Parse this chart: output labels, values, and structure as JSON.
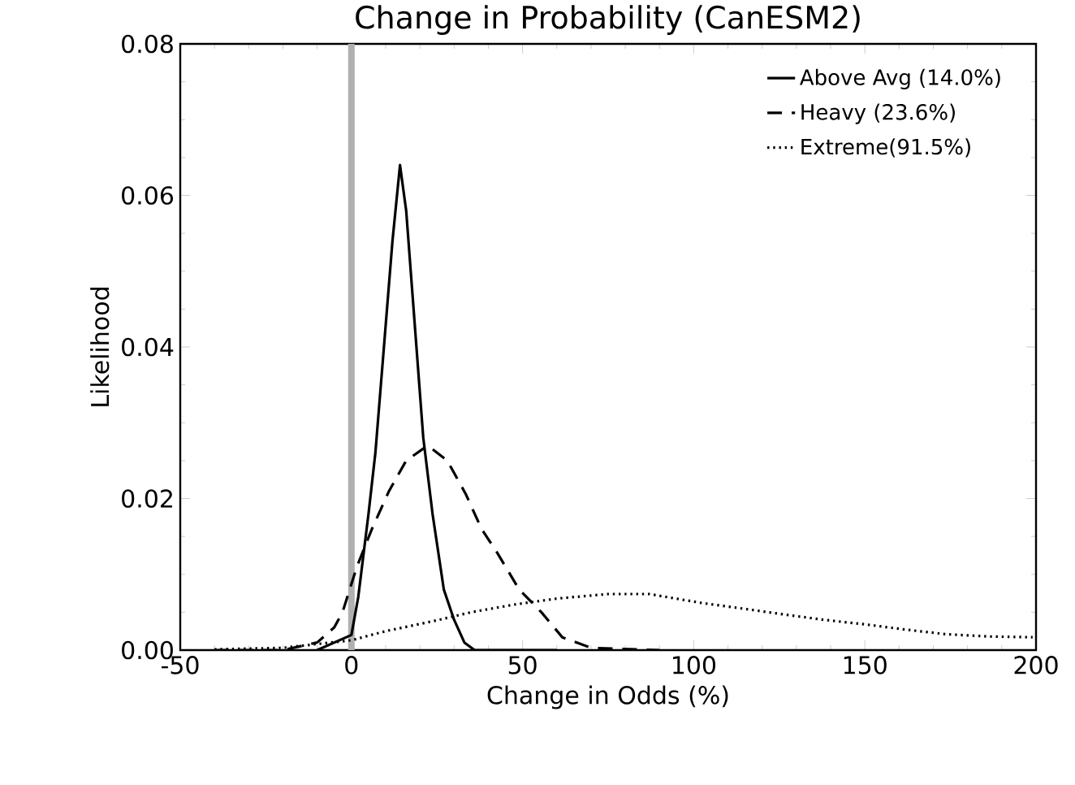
{
  "chart_data": {
    "type": "line",
    "title": "Change in Probability (CanESM2)",
    "xlabel": "Change in Odds (%)",
    "ylabel": "Likelihood",
    "xlim": [
      -50,
      200
    ],
    "xticks": [
      -50,
      0,
      50,
      100,
      150,
      200
    ],
    "ylim": [
      0,
      0.08
    ],
    "yticks": [
      {
        "value": 0,
        "label": "0.00"
      },
      {
        "value": 0.02,
        "label": "0.02"
      },
      {
        "value": 0.04,
        "label": "0.04"
      },
      {
        "value": 0.06,
        "label": "0.06"
      },
      {
        "value": 0.08,
        "label": "0.08"
      }
    ],
    "legend": "top right",
    "grid": false,
    "marker": "none",
    "ref_lines": [
      {
        "axis": "x",
        "value": 0,
        "color": "#b0b0b0"
      }
    ],
    "series": [
      {
        "name": "Above Avg (14.0%)",
        "color": "#000000",
        "line_style": "solid",
        "x": [
          -10,
          0,
          2,
          5,
          7,
          9.5,
          12,
          14.2,
          16,
          19,
          21,
          23.7,
          27,
          30,
          33,
          36,
          60
        ],
        "values": [
          0,
          0.002,
          0.007,
          0.018,
          0.026,
          0.04,
          0.054,
          0.064,
          0.058,
          0.04,
          0.028,
          0.018,
          0.008,
          0.004,
          0.001,
          0,
          0
        ]
      },
      {
        "name": "Heavy (23.6%)",
        "color": "#000000",
        "line_style": "dashed",
        "x": [
          -40,
          -20,
          -10,
          -5,
          -2.6,
          1.6,
          6,
          11,
          16,
          22.3,
          28,
          33.4,
          38,
          42.8,
          49,
          55.5,
          61.6,
          70,
          90
        ],
        "values": [
          0,
          0,
          0.001,
          0.003,
          0.005,
          0.011,
          0.016,
          0.021,
          0.025,
          0.027,
          0.025,
          0.0206,
          0.016,
          0.0127,
          0.008,
          0.005,
          0.0017,
          0.0003,
          0
        ]
      },
      {
        "name": "Extreme(91.5%)",
        "color": "#000000",
        "line_style": "dotted",
        "x": [
          -40,
          -20,
          0,
          10,
          23.7,
          35,
          47.4,
          60,
          75,
          87,
          102.6,
          114,
          126.4,
          138,
          150,
          162,
          173.7,
          186,
          199
        ],
        "values": [
          0.0001,
          0.0003,
          0.0013,
          0.0025,
          0.0038,
          0.005,
          0.006,
          0.0068,
          0.0074,
          0.0074,
          0.0062,
          0.0055,
          0.0047,
          0.004,
          0.0034,
          0.0027,
          0.0021,
          0.0018,
          0.0017
        ]
      }
    ]
  }
}
